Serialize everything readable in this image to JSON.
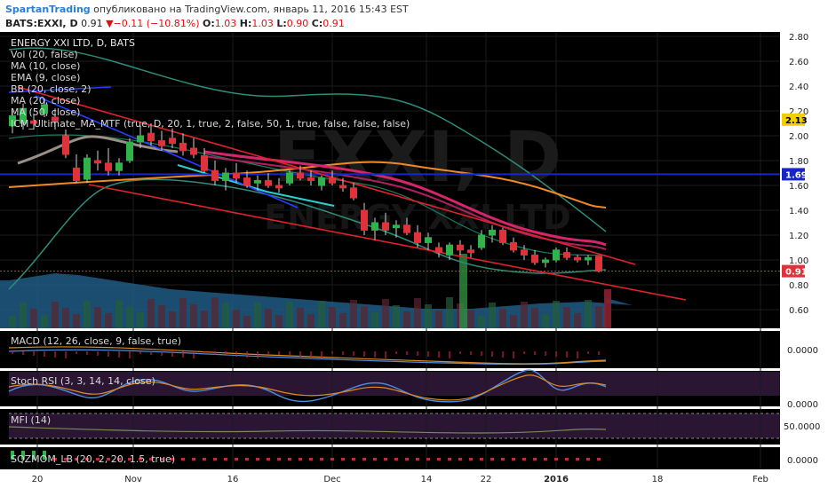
{
  "header": {
    "author": "SpartanTrading",
    "published": "опубликовано на TradingView.com, январь 11, 2016 15:43 EST",
    "symbol": "BATS:EXXI, D",
    "last": "0.91",
    "change_arrow": "▼",
    "change": "−0.11 (−10.81%)",
    "o_label": "O:",
    "o_value": "1.03",
    "h_label": "H:",
    "h_value": "1.03",
    "l_label": "L:",
    "l_value": "0.90",
    "c_label": "C:",
    "c_value": "0.91"
  },
  "legend": [
    "ENERGY XXI LTD, D, BATS",
    "Vol (20, false)",
    "MA (10, close)",
    "EMA (9, close)",
    "BB (20, close, 2)",
    "MA (20, close)",
    "MA (50, close)",
    "ICM_Ultimate_MA_MTF (true, D, 20, 1, true, 2, false, 50, 1, true, false, false, false)"
  ],
  "watermark": "EXXI, D",
  "watermark2": "ENERGY XXI LTD",
  "panels": {
    "macd": "MACD (12, 26, close, 9, false, true)",
    "stoch": "Stoch RSI (3, 3, 14, 14, close)",
    "mfi": "MFI (14)",
    "sqz": "SQZMOM_LB (20, 2, 20, 1.5, true)"
  },
  "price_axis": [
    "2.80",
    "2.60",
    "2.40",
    "2.20",
    "2.00",
    "1.80",
    "1.60",
    "1.40",
    "1.20",
    "1.00",
    "0.80",
    "0.60"
  ],
  "price_badges": {
    "upper": "2.13",
    "hline": "1.69",
    "last": "0.91"
  },
  "panel_axis": {
    "macd": "0.0000",
    "stoch": "0.0000",
    "mfi": "50.0000",
    "sqz": "0.0000"
  },
  "time_axis": [
    "20",
    "Nov",
    "16",
    "Dec",
    "14",
    "22",
    "2016",
    "18",
    "Feb"
  ],
  "colors": {
    "up": "#2fb34a",
    "down": "#e0323a",
    "bg": "#000000",
    "grid": "#1c1c1c",
    "hline": "#1826c8",
    "trend": "#e0222a",
    "ema": "#d4266a",
    "ma50": "#f08a24",
    "bb": "#2e8c7a",
    "vol": "#1f5a84",
    "panel_bg": "#2a1532"
  },
  "chart_data": {
    "type": "candlestick",
    "ylim": [
      0.48,
      2.84
    ],
    "candles": [
      {
        "o": 2.08,
        "h": 2.2,
        "l": 2.02,
        "c": 2.16
      },
      {
        "o": 2.1,
        "h": 2.26,
        "l": 2.05,
        "c": 2.22
      },
      {
        "o": 2.12,
        "h": 2.18,
        "l": 2.05,
        "c": 2.1
      },
      {
        "o": 2.18,
        "h": 2.3,
        "l": 2.15,
        "c": 2.25
      },
      {
        "o": 2.15,
        "h": 2.22,
        "l": 2.05,
        "c": 2.12
      },
      {
        "o": 2.0,
        "h": 2.05,
        "l": 1.82,
        "c": 1.85
      },
      {
        "o": 1.74,
        "h": 1.85,
        "l": 1.62,
        "c": 1.64
      },
      {
        "o": 1.65,
        "h": 1.85,
        "l": 1.62,
        "c": 1.82
      },
      {
        "o": 1.8,
        "h": 1.88,
        "l": 1.72,
        "c": 1.78
      },
      {
        "o": 1.78,
        "h": 1.9,
        "l": 1.68,
        "c": 1.72
      },
      {
        "o": 1.72,
        "h": 1.82,
        "l": 1.68,
        "c": 1.78
      },
      {
        "o": 1.8,
        "h": 1.98,
        "l": 1.78,
        "c": 1.95
      },
      {
        "o": 1.95,
        "h": 2.08,
        "l": 1.9,
        "c": 2.0
      },
      {
        "o": 2.02,
        "h": 2.1,
        "l": 1.92,
        "c": 1.96
      },
      {
        "o": 1.96,
        "h": 2.04,
        "l": 1.88,
        "c": 1.92
      },
      {
        "o": 1.98,
        "h": 2.06,
        "l": 1.9,
        "c": 1.94
      },
      {
        "o": 1.94,
        "h": 2.02,
        "l": 1.84,
        "c": 1.88
      },
      {
        "o": 1.9,
        "h": 1.98,
        "l": 1.82,
        "c": 1.85
      },
      {
        "o": 1.84,
        "h": 1.9,
        "l": 1.7,
        "c": 1.72
      },
      {
        "o": 1.72,
        "h": 1.8,
        "l": 1.6,
        "c": 1.64
      },
      {
        "o": 1.64,
        "h": 1.74,
        "l": 1.56,
        "c": 1.7
      },
      {
        "o": 1.7,
        "h": 1.78,
        "l": 1.62,
        "c": 1.66
      },
      {
        "o": 1.66,
        "h": 1.72,
        "l": 1.58,
        "c": 1.6
      },
      {
        "o": 1.62,
        "h": 1.68,
        "l": 1.56,
        "c": 1.64
      },
      {
        "o": 1.64,
        "h": 1.7,
        "l": 1.58,
        "c": 1.6
      },
      {
        "o": 1.6,
        "h": 1.66,
        "l": 1.54,
        "c": 1.58
      },
      {
        "o": 1.62,
        "h": 1.72,
        "l": 1.6,
        "c": 1.7
      },
      {
        "o": 1.7,
        "h": 1.76,
        "l": 1.64,
        "c": 1.66
      },
      {
        "o": 1.66,
        "h": 1.72,
        "l": 1.6,
        "c": 1.64
      },
      {
        "o": 1.6,
        "h": 1.68,
        "l": 1.56,
        "c": 1.66
      },
      {
        "o": 1.66,
        "h": 1.72,
        "l": 1.6,
        "c": 1.62
      },
      {
        "o": 1.6,
        "h": 1.66,
        "l": 1.55,
        "c": 1.58
      },
      {
        "o": 1.58,
        "h": 1.62,
        "l": 1.48,
        "c": 1.5
      },
      {
        "o": 1.4,
        "h": 1.46,
        "l": 1.2,
        "c": 1.24
      },
      {
        "o": 1.24,
        "h": 1.34,
        "l": 1.16,
        "c": 1.3
      },
      {
        "o": 1.3,
        "h": 1.38,
        "l": 1.2,
        "c": 1.24
      },
      {
        "o": 1.26,
        "h": 1.32,
        "l": 1.18,
        "c": 1.28
      },
      {
        "o": 1.28,
        "h": 1.34,
        "l": 1.2,
        "c": 1.22
      },
      {
        "o": 1.22,
        "h": 1.28,
        "l": 1.1,
        "c": 1.14
      },
      {
        "o": 1.14,
        "h": 1.22,
        "l": 1.08,
        "c": 1.18
      },
      {
        "o": 1.1,
        "h": 1.14,
        "l": 1.02,
        "c": 1.06
      },
      {
        "o": 1.04,
        "h": 1.14,
        "l": 1.0,
        "c": 1.12
      },
      {
        "o": 1.12,
        "h": 1.16,
        "l": 1.04,
        "c": 1.08
      },
      {
        "o": 1.08,
        "h": 1.12,
        "l": 1.02,
        "c": 1.06
      },
      {
        "o": 1.1,
        "h": 1.24,
        "l": 1.08,
        "c": 1.2
      },
      {
        "o": 1.2,
        "h": 1.28,
        "l": 1.14,
        "c": 1.24
      },
      {
        "o": 1.24,
        "h": 1.26,
        "l": 1.12,
        "c": 1.14
      },
      {
        "o": 1.14,
        "h": 1.18,
        "l": 1.06,
        "c": 1.08
      },
      {
        "o": 1.08,
        "h": 1.12,
        "l": 1.0,
        "c": 1.04
      },
      {
        "o": 1.04,
        "h": 1.08,
        "l": 0.96,
        "c": 0.98
      },
      {
        "o": 0.98,
        "h": 1.02,
        "l": 0.94,
        "c": 1.0
      },
      {
        "o": 1.0,
        "h": 1.1,
        "l": 0.98,
        "c": 1.08
      },
      {
        "o": 1.06,
        "h": 1.1,
        "l": 1.0,
        "c": 1.02
      },
      {
        "o": 1.02,
        "h": 1.04,
        "l": 0.98,
        "c": 1.0
      },
      {
        "o": 1.0,
        "h": 1.04,
        "l": 0.96,
        "c": 1.02
      },
      {
        "o": 1.03,
        "h": 1.03,
        "l": 0.9,
        "c": 0.91
      }
    ]
  }
}
